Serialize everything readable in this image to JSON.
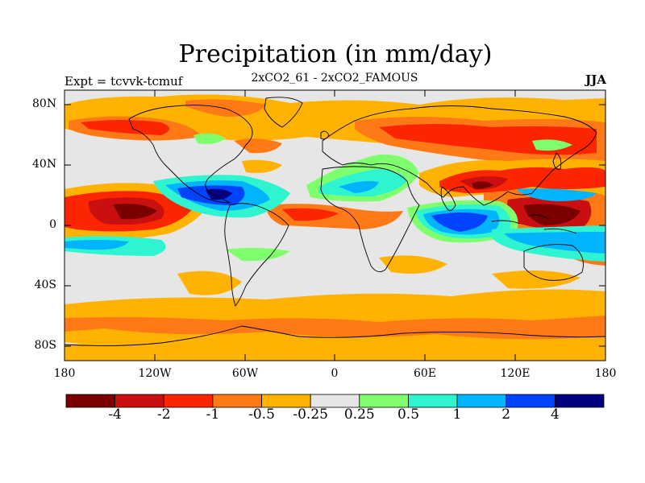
{
  "title": "Precipitation (in mm/day)",
  "subtitle": "2xCO2_61 - 2xCO2_FAMOUS",
  "left_string": "Expt = tcvvk-tcmuf",
  "right_string": "JJA",
  "lat_labels": [
    "80N",
    "40N",
    "0",
    "40S",
    "80S"
  ],
  "lon_labels": [
    "180",
    "120W",
    "60W",
    "0",
    "60E",
    "120E",
    "180"
  ],
  "colorbar": {
    "labels": [
      "-4",
      "-2",
      "-1",
      "-0.5",
      "-0.25",
      "0.25",
      "0.5",
      "1",
      "2",
      "4"
    ],
    "colors": [
      "#7a0000",
      "#c90f0f",
      "#fb2600",
      "#ff7a16",
      "#ffb300",
      "#e6e6e6",
      "#80ff6e",
      "#2ef5d0",
      "#00b4ff",
      "#0043ff",
      "#000080"
    ]
  },
  "colors": {
    "ocean_background": "#e6e6e6",
    "coastline": "#000000"
  }
}
